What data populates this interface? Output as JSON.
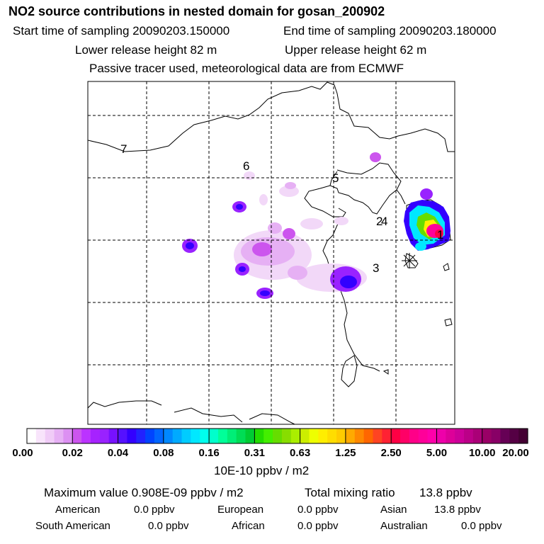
{
  "header": {
    "title": "NO2 source contributions in nested domain for gosan_200902",
    "start": "Start time of sampling 20090203.150000",
    "end": "End time of sampling 20090203.180000",
    "lower": "Lower release height   82 m",
    "upper": "Upper release height   62 m",
    "tracer": "Passive tracer used, meteorological data are from ECMWF"
  },
  "map": {
    "site_labels": [
      "1",
      "2",
      "3",
      "4",
      "5",
      "6",
      "7"
    ],
    "colors": {
      "frame": "#000000",
      "grid": "#000000",
      "pale": "#f2d8f8",
      "light": "#e6b0f4",
      "violet": "#cc55ee",
      "purple": "#9922ff",
      "blue": "#3300ff",
      "cyan": "#00e8ff",
      "green": "#66dd00",
      "yellow": "#ffee00",
      "red": "#ff0044",
      "magenta": "#ff0099"
    }
  },
  "legend": {
    "ticks": [
      "0.00",
      "0.02",
      "0.04",
      "0.08",
      "0.16",
      "0.31",
      "0.63",
      "1.25",
      "2.50",
      "5.00",
      "10.00",
      "20.00"
    ],
    "colors": [
      "#ffffff",
      "#f8e4fb",
      "#f0ccf7",
      "#e6b0f4",
      "#dc90f2",
      "#cc55ee",
      "#bb33ff",
      "#a622ff",
      "#9922ff",
      "#7711ff",
      "#5511ff",
      "#3300ff",
      "#2222ff",
      "#0044ff",
      "#0066ff",
      "#0088ff",
      "#00aaff",
      "#00ccff",
      "#00e8ff",
      "#00ffee",
      "#00ffcc",
      "#00ff99",
      "#00ee77",
      "#00dd55",
      "#00cc33",
      "#22dd00",
      "#44ee00",
      "#66dd00",
      "#88dd00",
      "#aaee00",
      "#ccee00",
      "#eeff00",
      "#ffee00",
      "#ffdd00",
      "#ffcc00",
      "#ffaa00",
      "#ff8800",
      "#ff6600",
      "#ff4422",
      "#ff2233",
      "#ff0044",
      "#ff0066",
      "#ff0088",
      "#ff0099",
      "#ff00aa",
      "#ee00aa",
      "#dd0099",
      "#cc0099",
      "#bb0088",
      "#aa0077",
      "#990066",
      "#880066",
      "#660055",
      "#550044",
      "#440033"
    ],
    "units": "10E-10 ppbv / m2"
  },
  "summary": {
    "max": "Maximum value  0.908E-09 ppbv / m2",
    "total_label": "Total mixing ratio",
    "total_value": "13.8 ppbv",
    "regions": [
      {
        "name": "American",
        "value": "0.0 ppbv"
      },
      {
        "name": "European",
        "value": "0.0 ppbv"
      },
      {
        "name": "Asian",
        "value": "13.8 ppbv"
      },
      {
        "name": "South American",
        "value": "0.0 ppbv"
      },
      {
        "name": "African",
        "value": "0.0 ppbv"
      },
      {
        "name": "Australian",
        "value": "0.0 ppbv"
      }
    ]
  }
}
